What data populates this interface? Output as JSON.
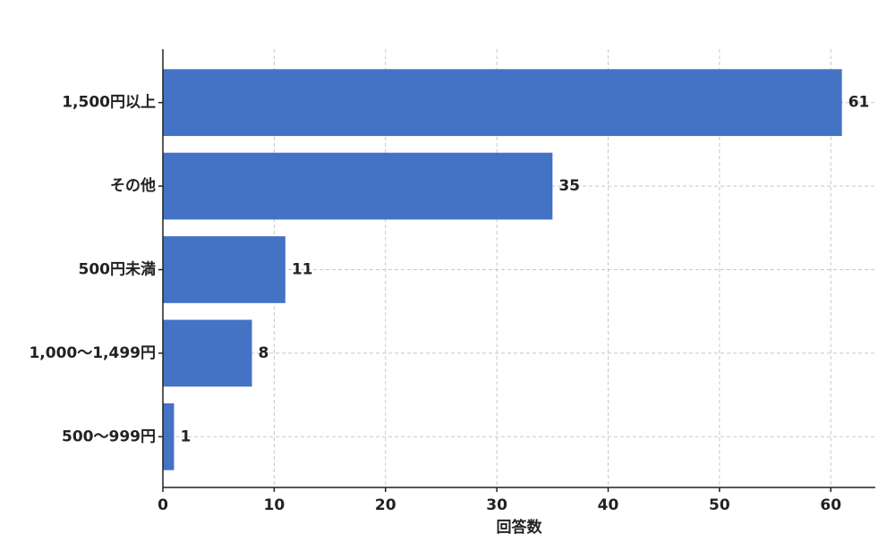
{
  "chart_data": {
    "type": "barh",
    "xlabel": "回答数",
    "categories": [
      "1,500円以上",
      "その他",
      "500円未満",
      "1,000〜1,499円",
      "500〜999円"
    ],
    "values": [
      61,
      35,
      11,
      8,
      1
    ],
    "color": "#4472c4",
    "xlim": [
      0,
      64
    ],
    "xticks": [
      0,
      10,
      20,
      30,
      40,
      50,
      60
    ],
    "grid": true
  }
}
